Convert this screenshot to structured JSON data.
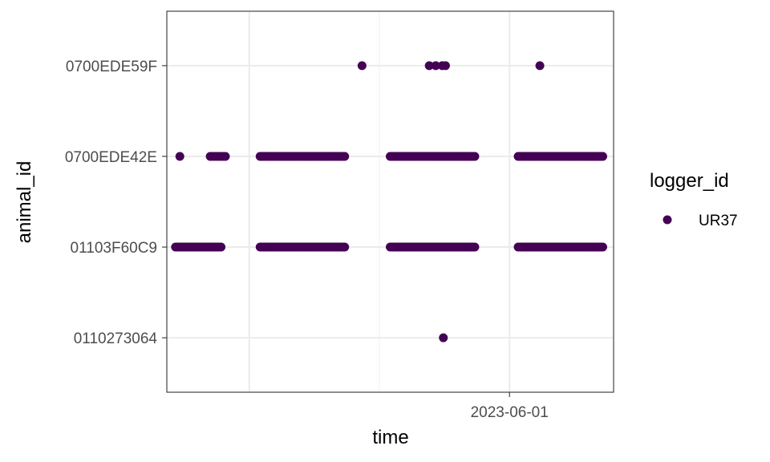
{
  "chart_data": {
    "type": "scatter",
    "xlabel": "time",
    "ylabel": "animal_id",
    "x_tick_labels": [
      {
        "value": "2023-06-01",
        "label": "2023-06-01"
      }
    ],
    "x_range": [
      "2023-05-18T20:00",
      "2023-06-05T00:00"
    ],
    "y_categories": [
      "0110273064",
      "01103F60C9",
      "0700EDE42E",
      "0700EDE59F"
    ],
    "grid": true,
    "legend": {
      "title": "logger_id",
      "placement": "right",
      "entries": [
        {
          "name": "UR37",
          "color": "#440154"
        }
      ]
    },
    "point_color": "#440154",
    "series": [
      {
        "name": "UR37",
        "points": [
          {
            "x": "2023-05-29T13:00",
            "y": "0700EDE59F"
          },
          {
            "x": "2023-05-26T08:00",
            "y": "0700EDE59F"
          },
          {
            "x": "2023-05-28T22:00",
            "y": "0700EDE59F"
          },
          {
            "x": "2023-05-29T04:00",
            "y": "0700EDE59F"
          },
          {
            "x": "2023-05-29T10:00",
            "y": "0700EDE59F"
          },
          {
            "x": "2023-06-02T04:00",
            "y": "0700EDE59F"
          },
          {
            "x": "2023-05-29T11:00",
            "y": "0110273064"
          },
          {
            "x": "2023-05-19T08:00",
            "y": "0700EDE42E"
          }
        ],
        "ranges": [
          {
            "y": "0700EDE42E",
            "start": "2023-05-20T12:00",
            "end": "2023-05-21T02:00",
            "count": 8
          },
          {
            "y": "0700EDE42E",
            "start": "2023-05-22T10:00",
            "end": "2023-05-25T16:00",
            "count": 60
          },
          {
            "y": "0700EDE42E",
            "start": "2023-05-27T10:00",
            "end": "2023-05-30T16:00",
            "count": 60
          },
          {
            "y": "0700EDE42E",
            "start": "2023-06-01T08:00",
            "end": "2023-06-04T14:00",
            "count": 60
          },
          {
            "y": "01103F60C9",
            "start": "2023-05-19T04:00",
            "end": "2023-05-20T22:00",
            "count": 30
          },
          {
            "y": "01103F60C9",
            "start": "2023-05-22T10:00",
            "end": "2023-05-25T16:00",
            "count": 60
          },
          {
            "y": "01103F60C9",
            "start": "2023-05-27T10:00",
            "end": "2023-05-30T16:00",
            "count": 60
          },
          {
            "y": "01103F60C9",
            "start": "2023-06-01T08:00",
            "end": "2023-06-04T14:00",
            "count": 60
          }
        ]
      }
    ]
  }
}
